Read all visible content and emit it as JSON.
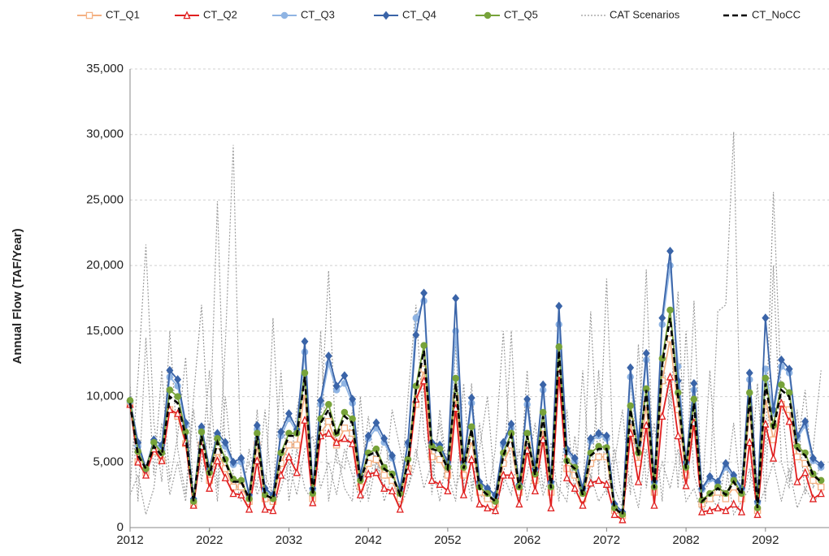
{
  "chart_data": {
    "type": "line",
    "y_label": "Annual Flow (TAF/Year)",
    "x": [
      2012,
      2013,
      2014,
      2015,
      2016,
      2017,
      2018,
      2019,
      2020,
      2021,
      2022,
      2023,
      2024,
      2025,
      2026,
      2027,
      2028,
      2029,
      2030,
      2031,
      2032,
      2033,
      2034,
      2035,
      2036,
      2037,
      2038,
      2039,
      2040,
      2041,
      2042,
      2043,
      2044,
      2045,
      2046,
      2047,
      2048,
      2049,
      2050,
      2051,
      2052,
      2053,
      2054,
      2055,
      2056,
      2057,
      2058,
      2059,
      2060,
      2061,
      2062,
      2063,
      2064,
      2065,
      2066,
      2067,
      2068,
      2069,
      2070,
      2071,
      2072,
      2073,
      2074,
      2075,
      2076,
      2077,
      2078,
      2079,
      2080,
      2081,
      2082,
      2083,
      2084,
      2085,
      2086,
      2087,
      2088,
      2089,
      2090,
      2091,
      2092,
      2093,
      2094,
      2095,
      2096,
      2097,
      2098,
      2099
    ],
    "xlim": [
      2012,
      2100
    ],
    "xticks": [
      2012,
      2022,
      2032,
      2042,
      2052,
      2062,
      2072,
      2082,
      2092
    ],
    "ylim": [
      0,
      35000
    ],
    "yticks": [
      0,
      {
        "value": 5000,
        "label": "5,000"
      },
      {
        "value": 10000,
        "label": "10,000"
      },
      {
        "value": 15000,
        "label": "15,000"
      },
      {
        "value": 20000,
        "label": "20,000"
      },
      {
        "value": 25000,
        "label": "25,000"
      },
      {
        "value": 30000,
        "label": "30,000"
      },
      {
        "value": 35000,
        "label": "35,000"
      }
    ],
    "grid": true,
    "series": [
      {
        "name": "CT_Q1",
        "color": "#f4b183",
        "marker": "square",
        "values": [
          9400,
          5000,
          4200,
          5800,
          5100,
          9000,
          8500,
          6400,
          1800,
          6300,
          3600,
          5800,
          4500,
          3100,
          3100,
          2000,
          6300,
          2200,
          2000,
          4900,
          6300,
          6300,
          10300,
          2200,
          7200,
          8100,
          6300,
          7600,
          7200,
          3100,
          4900,
          5200,
          4000,
          3600,
          2200,
          4500,
          9400,
          12100,
          5400,
          5200,
          4000,
          9900,
          4000,
          6700,
          2700,
          2200,
          1800,
          4900,
          6300,
          2700,
          6300,
          3600,
          7600,
          2700,
          12100,
          4500,
          4000,
          2200,
          4900,
          5400,
          5400,
          1300,
          900,
          8100,
          4900,
          9400,
          2700,
          11200,
          14400,
          9000,
          4000,
          8500,
          1800,
          2200,
          2700,
          2200,
          3100,
          2200,
          9000,
          1300,
          9900,
          6700,
          9400,
          9000,
          5400,
          4900,
          3600,
          3100
        ]
      },
      {
        "name": "CT_Q2",
        "color": "#e02020",
        "marker": "triangle",
        "values": [
          9400,
          5000,
          4000,
          6000,
          5100,
          9000,
          8700,
          6500,
          1700,
          6200,
          3000,
          5100,
          3800,
          2600,
          2500,
          1400,
          5100,
          1400,
          1300,
          4000,
          5400,
          4200,
          8200,
          1900,
          7000,
          7200,
          6500,
          6800,
          6400,
          2500,
          4100,
          4200,
          3000,
          2800,
          1400,
          4300,
          9800,
          11200,
          3600,
          3300,
          2800,
          9100,
          2500,
          5200,
          1800,
          1500,
          1300,
          4000,
          4000,
          1800,
          5900,
          2800,
          6700,
          1500,
          11700,
          3800,
          3000,
          1700,
          3400,
          3600,
          3300,
          1000,
          600,
          7200,
          3500,
          7800,
          1700,
          8500,
          11500,
          7000,
          3200,
          8000,
          1200,
          1300,
          1500,
          1300,
          1800,
          1200,
          6500,
          1000,
          7900,
          5300,
          9500,
          8100,
          3500,
          4200,
          2200,
          2600
        ]
      },
      {
        "name": "CT_Q3",
        "color": "#8fb4e3",
        "marker": "circle",
        "values": [
          9600,
          6200,
          4500,
          6500,
          6000,
          11500,
          10800,
          7800,
          2100,
          7500,
          4300,
          7000,
          6200,
          4800,
          5000,
          2400,
          7500,
          2800,
          2400,
          7000,
          8300,
          7300,
          13400,
          2900,
          9400,
          12500,
          10500,
          11000,
          9500,
          3800,
          6800,
          7600,
          6500,
          5300,
          2900,
          6300,
          16000,
          17300,
          6300,
          6100,
          4800,
          15000,
          4800,
          9500,
          3300,
          2900,
          2400,
          6300,
          7600,
          3200,
          9400,
          4400,
          10500,
          3400,
          15500,
          5800,
          5100,
          2900,
          6600,
          7000,
          6800,
          1700,
          1100,
          11500,
          6300,
          12800,
          3400,
          15500,
          20000,
          12300,
          4800,
          10500,
          2900,
          3700,
          3400,
          4600,
          3800,
          2900,
          11300,
          1900,
          12100,
          8700,
          12300,
          11800,
          6800,
          7800,
          5100,
          4600
        ]
      },
      {
        "name": "CT_Q4",
        "color": "#3a64a8",
        "marker": "diamond",
        "values": [
          9700,
          6500,
          4500,
          6700,
          6300,
          12000,
          11300,
          8000,
          2200,
          7700,
          4500,
          7200,
          6500,
          5000,
          5300,
          2500,
          7800,
          3000,
          2500,
          7300,
          8700,
          7500,
          14200,
          3000,
          9700,
          13100,
          10800,
          11600,
          9800,
          4000,
          7000,
          8000,
          6800,
          5500,
          3000,
          6500,
          14700,
          17900,
          6500,
          6300,
          5000,
          17500,
          5000,
          9900,
          3500,
          3000,
          2500,
          6500,
          7900,
          3300,
          9800,
          4500,
          10900,
          3500,
          16900,
          6000,
          5300,
          3000,
          6800,
          7200,
          7000,
          1800,
          1200,
          12200,
          6500,
          13300,
          3500,
          16000,
          21100,
          11200,
          5000,
          11000,
          3000,
          3900,
          3500,
          4900,
          4000,
          3000,
          11800,
          2000,
          16000,
          9000,
          12800,
          12100,
          7000,
          8100,
          5300,
          4800
        ]
      },
      {
        "name": "CT_Q5",
        "color": "#77a33a",
        "marker": "circle",
        "values": [
          9700,
          5800,
          4500,
          6500,
          5700,
          10500,
          10000,
          7300,
          2000,
          7300,
          4200,
          6800,
          5200,
          3700,
          3600,
          2200,
          7200,
          2500,
          2200,
          5700,
          7200,
          7200,
          11800,
          2600,
          8300,
          9400,
          7200,
          8800,
          8300,
          3600,
          5700,
          6000,
          4600,
          4100,
          2600,
          5200,
          10800,
          13900,
          6200,
          6000,
          4600,
          11400,
          4600,
          7700,
          3100,
          2600,
          2000,
          5700,
          7200,
          3100,
          7200,
          4100,
          8800,
          3100,
          13800,
          5100,
          4600,
          2600,
          5700,
          6200,
          6100,
          1500,
          1000,
          9300,
          5700,
          10600,
          3100,
          12900,
          16600,
          10300,
          4600,
          9800,
          2100,
          2600,
          3100,
          2600,
          3600,
          2600,
          10300,
          1500,
          11400,
          7800,
          10900,
          10300,
          6200,
          5700,
          4100,
          3600
        ]
      },
      {
        "name": "CT_NoCC",
        "color": "#000000",
        "marker": "none",
        "dash": "7 4",
        "values": [
          9500,
          5500,
          4500,
          6200,
          5500,
          10000,
          9500,
          7000,
          2000,
          7000,
          4000,
          6500,
          5000,
          3500,
          3500,
          2200,
          7000,
          2500,
          2200,
          5500,
          7000,
          7000,
          11500,
          2500,
          8000,
          9000,
          7000,
          8500,
          8000,
          3500,
          5500,
          5800,
          4500,
          4000,
          2500,
          5000,
          10500,
          13500,
          6000,
          5800,
          4500,
          11000,
          4500,
          7500,
          3000,
          2500,
          2000,
          5500,
          7000,
          3000,
          7000,
          4000,
          8500,
          3000,
          13500,
          5000,
          4500,
          2500,
          5500,
          6000,
          6000,
          1500,
          1000,
          9000,
          5500,
          10500,
          3000,
          12500,
          16000,
          10000,
          4500,
          9500,
          2000,
          2500,
          3000,
          2500,
          3500,
          2500,
          10000,
          1500,
          11000,
          7500,
          10500,
          10000,
          6000,
          5500,
          4000,
          3500
        ]
      }
    ],
    "cat_scenarios": {
      "name": "CAT Scenarios",
      "color": "#9a9a9a",
      "dash": "2 2",
      "series": [
        [
          3000,
          11500,
          21600,
          8000,
          3500,
          15000,
          6000,
          2500,
          10000,
          17000,
          6000,
          24900,
          5000,
          3000,
          3500,
          2000,
          9000,
          1500,
          16000,
          4000,
          3500,
          9000,
          12000,
          3000,
          8000,
          19600,
          5000,
          4500,
          9000,
          3000,
          8500,
          4000,
          7000,
          3500,
          2000,
          10000,
          17000,
          7000,
          4000,
          8000,
          3500,
          14000,
          3000,
          11000,
          2500,
          2000,
          6000,
          15000,
          4000,
          2500,
          12000,
          3000,
          7000,
          2500,
          16000,
          3000,
          5500,
          2000,
          16500,
          4000,
          19000,
          3000,
          1500,
          11000,
          6000,
          19700,
          2000,
          13000,
          9000,
          18000,
          3000,
          17300,
          2500,
          3500,
          16500,
          17000,
          30200,
          3000,
          12000,
          3000,
          6000,
          25600,
          10000,
          3500,
          6000,
          10500,
          3000,
          5000
        ],
        [
          11000,
          2000,
          14500,
          4000,
          12000,
          3500,
          7000,
          13000,
          2500,
          5000,
          12000,
          3000,
          14000,
          29200,
          3000,
          5000,
          2500,
          4000,
          2500,
          12000,
          2000,
          6000,
          3000,
          2000,
          15000,
          2000,
          6000,
          3000,
          2000,
          10000,
          2000,
          5000,
          3000,
          9000,
          6000,
          3000,
          5000,
          11000,
          2500,
          9000,
          4000,
          2000,
          11000,
          3000,
          6000,
          10000,
          2500,
          3000,
          15000,
          2000,
          4000,
          8000,
          3000,
          6500,
          2000,
          9000,
          2500,
          12000,
          3000,
          12000,
          2500,
          5000,
          9000,
          2500,
          14000,
          3000,
          8000,
          2000,
          11000,
          3000,
          15000,
          4000,
          2000,
          12000,
          2500,
          3000,
          8000,
          2000,
          3000,
          11000,
          2000,
          20000,
          5000,
          3000,
          9000,
          2500,
          6000,
          12000
        ],
        [
          2500,
          4000,
          1000,
          3000,
          8000,
          2500,
          5000,
          2000,
          9000,
          3500,
          8000,
          2000,
          10000,
          4000,
          2000,
          6000,
          3000,
          9000,
          1500,
          3000,
          5000,
          2500,
          6000,
          7000,
          3000,
          5000,
          2500,
          6000,
          4000,
          2000,
          3000,
          6000,
          2000,
          4000,
          1500,
          3000,
          6000,
          3000,
          5000,
          2000,
          6000,
          3000,
          5000,
          2000,
          8000,
          3000,
          1000,
          4000,
          2500,
          6000,
          2000,
          5000,
          2500,
          4000,
          3000,
          2000,
          7000,
          1500,
          4000,
          2000,
          3000,
          6000,
          2000,
          4000,
          1500,
          6000,
          2500,
          5000,
          3000,
          6000,
          2000,
          3000,
          1000,
          2500,
          1500,
          5000,
          1000,
          2000,
          4500,
          1500,
          3000,
          5000,
          2000,
          4500,
          1500,
          3000,
          2000,
          2500
        ]
      ]
    }
  }
}
